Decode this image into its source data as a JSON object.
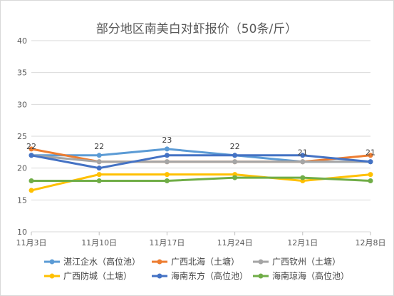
{
  "chart_data": {
    "type": "line",
    "title": "部分地区南美白对虾报价（50条/斤）",
    "xlabel": "",
    "ylabel": "",
    "categories": [
      "11月3日",
      "11月10日",
      "11月17日",
      "11月24日",
      "12月1日",
      "12月8日"
    ],
    "ylim": [
      10,
      40
    ],
    "yticks": [
      10,
      15,
      20,
      25,
      30,
      35,
      40
    ],
    "grid": true,
    "legend_position": "bottom",
    "series": [
      {
        "name": "湛江企水（高位池）",
        "color": "#5b9bd5",
        "values": [
          22,
          22,
          23,
          22,
          21,
          21
        ]
      },
      {
        "name": "广西北海（土塘）",
        "color": "#ed7d31",
        "values": [
          23,
          21,
          21,
          21,
          21,
          22
        ]
      },
      {
        "name": "广西钦州（土塘）",
        "color": "#a5a5a5",
        "values": [
          22,
          21,
          21,
          21,
          21,
          21
        ]
      },
      {
        "name": "广西防城（土塘）",
        "color": "#ffc000",
        "values": [
          16.5,
          19,
          19,
          19,
          18,
          19
        ]
      },
      {
        "name": "海南东方（高位池）",
        "color": "#4472c4",
        "values": [
          22,
          20,
          22,
          22,
          22,
          21
        ]
      },
      {
        "name": "海南琼海（高位池）",
        "color": "#70ad47",
        "values": [
          18,
          18,
          18,
          18.5,
          18.5,
          18
        ]
      }
    ],
    "data_labels": [
      {
        "category_index": 0,
        "value": 22,
        "text": "22"
      },
      {
        "category_index": 1,
        "value": 22,
        "text": "22"
      },
      {
        "category_index": 2,
        "value": 23,
        "text": "23"
      },
      {
        "category_index": 3,
        "value": 22,
        "text": "22"
      },
      {
        "category_index": 4,
        "value": 21,
        "text": "21"
      },
      {
        "category_index": 5,
        "value": 21,
        "text": "21"
      }
    ]
  }
}
